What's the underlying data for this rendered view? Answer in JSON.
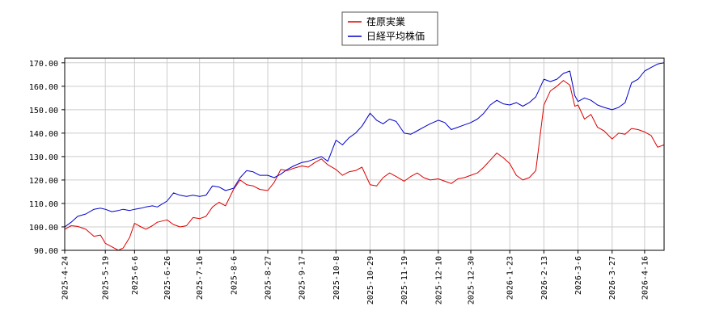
{
  "chart_data": {
    "type": "line",
    "title": "",
    "xlabel": "",
    "ylabel": "",
    "legend_position": "top-center",
    "grid": true,
    "ylim": [
      90,
      172
    ],
    "xlim": [
      "2025-04-24",
      "2026-04-28"
    ],
    "y_ticks": [
      {
        "value": 90,
        "label": "90.00"
      },
      {
        "value": 100,
        "label": "100.00"
      },
      {
        "value": 110,
        "label": "110.00"
      },
      {
        "value": 120,
        "label": "120.00"
      },
      {
        "value": 130,
        "label": "130.00"
      },
      {
        "value": 140,
        "label": "140.00"
      },
      {
        "value": 150,
        "label": "150.00"
      },
      {
        "value": 160,
        "label": "160.00"
      },
      {
        "value": 170,
        "label": "170.00"
      }
    ],
    "x_ticks": [
      "2025-4-24",
      "2025-5-19",
      "2025-6-6",
      "2025-6-26",
      "2025-7-16",
      "2025-8-6",
      "2025-8-27",
      "2025-9-17",
      "2025-10-8",
      "2025-10-29",
      "2025-11-19",
      "2025-12-10",
      "2025-12-30",
      "2026-1-23",
      "2026-2-13",
      "2026-3-6",
      "2026-3-27",
      "2026-4-16"
    ],
    "series": [
      {
        "name": "荏原実業",
        "color": "#dd0000",
        "points": [
          [
            "2025-04-24",
            99.0
          ],
          [
            "2025-04-28",
            100.5
          ],
          [
            "2025-05-02",
            100.2
          ],
          [
            "2025-05-07",
            99.0
          ],
          [
            "2025-05-12",
            96.0
          ],
          [
            "2025-05-16",
            96.5
          ],
          [
            "2025-05-19",
            93.0
          ],
          [
            "2025-05-23",
            91.5
          ],
          [
            "2025-05-27",
            90.0
          ],
          [
            "2025-05-30",
            91.0
          ],
          [
            "2025-06-03",
            95.5
          ],
          [
            "2025-06-06",
            101.5
          ],
          [
            "2025-06-10",
            100.0
          ],
          [
            "2025-06-13",
            99.0
          ],
          [
            "2025-06-17",
            100.5
          ],
          [
            "2025-06-20",
            102.0
          ],
          [
            "2025-06-26",
            103.0
          ],
          [
            "2025-06-30",
            101.0
          ],
          [
            "2025-07-04",
            100.0
          ],
          [
            "2025-07-08",
            100.5
          ],
          [
            "2025-07-12",
            104.0
          ],
          [
            "2025-07-16",
            103.5
          ],
          [
            "2025-07-20",
            104.5
          ],
          [
            "2025-07-24",
            108.5
          ],
          [
            "2025-07-28",
            110.5
          ],
          [
            "2025-08-01",
            109.0
          ],
          [
            "2025-08-06",
            116.0
          ],
          [
            "2025-08-10",
            120.0
          ],
          [
            "2025-08-14",
            118.0
          ],
          [
            "2025-08-18",
            117.5
          ],
          [
            "2025-08-22",
            116.0
          ],
          [
            "2025-08-27",
            115.5
          ],
          [
            "2025-08-31",
            119.0
          ],
          [
            "2025-09-04",
            124.5
          ],
          [
            "2025-09-08",
            124.0
          ],
          [
            "2025-09-12",
            125.0
          ],
          [
            "2025-09-17",
            126.0
          ],
          [
            "2025-09-21",
            125.5
          ],
          [
            "2025-09-25",
            127.5
          ],
          [
            "2025-09-29",
            129.0
          ],
          [
            "2025-10-03",
            126.5
          ],
          [
            "2025-10-08",
            124.5
          ],
          [
            "2025-10-12",
            122.0
          ],
          [
            "2025-10-16",
            123.5
          ],
          [
            "2025-10-20",
            124.0
          ],
          [
            "2025-10-24",
            125.5
          ],
          [
            "2025-10-29",
            118.0
          ],
          [
            "2025-11-02",
            117.5
          ],
          [
            "2025-11-06",
            121.0
          ],
          [
            "2025-11-10",
            123.0
          ],
          [
            "2025-11-14",
            121.5
          ],
          [
            "2025-11-19",
            119.5
          ],
          [
            "2025-11-23",
            121.5
          ],
          [
            "2025-11-27",
            123.0
          ],
          [
            "2025-12-01",
            121.0
          ],
          [
            "2025-12-05",
            120.0
          ],
          [
            "2025-12-10",
            120.5
          ],
          [
            "2025-12-14",
            119.5
          ],
          [
            "2025-12-18",
            118.5
          ],
          [
            "2025-12-22",
            120.5
          ],
          [
            "2025-12-26",
            121.0
          ],
          [
            "2025-12-30",
            122.0
          ],
          [
            "2026-01-03",
            123.0
          ],
          [
            "2026-01-07",
            125.5
          ],
          [
            "2026-01-11",
            128.5
          ],
          [
            "2026-01-15",
            131.5
          ],
          [
            "2026-01-19",
            129.5
          ],
          [
            "2026-01-23",
            127.0
          ],
          [
            "2026-01-27",
            122.0
          ],
          [
            "2026-01-31",
            120.0
          ],
          [
            "2026-02-04",
            121.0
          ],
          [
            "2026-02-08",
            124.0
          ],
          [
            "2026-02-13",
            152.0
          ],
          [
            "2026-02-17",
            158.0
          ],
          [
            "2026-02-21",
            160.0
          ],
          [
            "2026-02-25",
            162.5
          ],
          [
            "2026-03-01",
            160.5
          ],
          [
            "2026-03-04",
            151.5
          ],
          [
            "2026-03-06",
            152.0
          ],
          [
            "2026-03-10",
            146.0
          ],
          [
            "2026-03-14",
            148.0
          ],
          [
            "2026-03-18",
            142.5
          ],
          [
            "2026-03-22",
            141.0
          ],
          [
            "2026-03-27",
            137.5
          ],
          [
            "2026-03-31",
            140.0
          ],
          [
            "2026-04-04",
            139.5
          ],
          [
            "2026-04-08",
            142.0
          ],
          [
            "2026-04-12",
            141.5
          ],
          [
            "2026-04-16",
            140.5
          ],
          [
            "2026-04-20",
            139.0
          ],
          [
            "2026-04-24",
            134.0
          ],
          [
            "2026-04-28",
            135.0
          ]
        ]
      },
      {
        "name": "日経平均株価",
        "color": "#0000cc",
        "points": [
          [
            "2025-04-24",
            100.0
          ],
          [
            "2025-04-28",
            102.0
          ],
          [
            "2025-05-02",
            104.5
          ],
          [
            "2025-05-07",
            105.5
          ],
          [
            "2025-05-12",
            107.5
          ],
          [
            "2025-05-16",
            108.0
          ],
          [
            "2025-05-19",
            107.5
          ],
          [
            "2025-05-23",
            106.5
          ],
          [
            "2025-05-27",
            107.0
          ],
          [
            "2025-05-30",
            107.5
          ],
          [
            "2025-06-03",
            107.0
          ],
          [
            "2025-06-06",
            107.5
          ],
          [
            "2025-06-10",
            108.0
          ],
          [
            "2025-06-13",
            108.5
          ],
          [
            "2025-06-17",
            109.0
          ],
          [
            "2025-06-20",
            108.5
          ],
          [
            "2025-06-26",
            111.0
          ],
          [
            "2025-06-30",
            114.5
          ],
          [
            "2025-07-04",
            113.5
          ],
          [
            "2025-07-08",
            113.0
          ],
          [
            "2025-07-12",
            113.5
          ],
          [
            "2025-07-16",
            113.0
          ],
          [
            "2025-07-20",
            113.5
          ],
          [
            "2025-07-24",
            117.5
          ],
          [
            "2025-07-28",
            117.0
          ],
          [
            "2025-08-01",
            115.5
          ],
          [
            "2025-08-06",
            116.5
          ],
          [
            "2025-08-10",
            121.0
          ],
          [
            "2025-08-14",
            124.0
          ],
          [
            "2025-08-18",
            123.5
          ],
          [
            "2025-08-22",
            122.0
          ],
          [
            "2025-08-27",
            122.0
          ],
          [
            "2025-08-31",
            121.0
          ],
          [
            "2025-09-04",
            122.5
          ],
          [
            "2025-09-08",
            124.5
          ],
          [
            "2025-09-12",
            126.0
          ],
          [
            "2025-09-17",
            127.5
          ],
          [
            "2025-09-21",
            128.0
          ],
          [
            "2025-09-25",
            129.0
          ],
          [
            "2025-09-29",
            130.0
          ],
          [
            "2025-10-03",
            128.0
          ],
          [
            "2025-10-08",
            137.0
          ],
          [
            "2025-10-12",
            135.0
          ],
          [
            "2025-10-16",
            138.0
          ],
          [
            "2025-10-20",
            140.0
          ],
          [
            "2025-10-24",
            143.0
          ],
          [
            "2025-10-29",
            148.5
          ],
          [
            "2025-11-02",
            145.5
          ],
          [
            "2025-11-06",
            144.0
          ],
          [
            "2025-11-10",
            146.0
          ],
          [
            "2025-11-14",
            145.0
          ],
          [
            "2025-11-19",
            140.0
          ],
          [
            "2025-11-23",
            139.5
          ],
          [
            "2025-11-27",
            141.0
          ],
          [
            "2025-12-01",
            142.5
          ],
          [
            "2025-12-05",
            144.0
          ],
          [
            "2025-12-10",
            145.5
          ],
          [
            "2025-12-14",
            144.5
          ],
          [
            "2025-12-18",
            141.5
          ],
          [
            "2025-12-22",
            142.5
          ],
          [
            "2025-12-26",
            143.5
          ],
          [
            "2025-12-30",
            144.5
          ],
          [
            "2026-01-03",
            146.0
          ],
          [
            "2026-01-07",
            148.5
          ],
          [
            "2026-01-11",
            152.0
          ],
          [
            "2026-01-15",
            154.0
          ],
          [
            "2026-01-19",
            152.5
          ],
          [
            "2026-01-23",
            152.0
          ],
          [
            "2026-01-27",
            153.0
          ],
          [
            "2026-01-31",
            151.5
          ],
          [
            "2026-02-04",
            153.0
          ],
          [
            "2026-02-08",
            155.5
          ],
          [
            "2026-02-13",
            163.0
          ],
          [
            "2026-02-17",
            162.0
          ],
          [
            "2026-02-21",
            163.0
          ],
          [
            "2026-02-25",
            165.5
          ],
          [
            "2026-03-01",
            166.5
          ],
          [
            "2026-03-04",
            156.0
          ],
          [
            "2026-03-06",
            153.5
          ],
          [
            "2026-03-10",
            155.0
          ],
          [
            "2026-03-14",
            154.0
          ],
          [
            "2026-03-18",
            152.0
          ],
          [
            "2026-03-22",
            151.0
          ],
          [
            "2026-03-27",
            150.0
          ],
          [
            "2026-03-31",
            151.0
          ],
          [
            "2026-04-04",
            153.0
          ],
          [
            "2026-04-08",
            161.5
          ],
          [
            "2026-04-12",
            163.0
          ],
          [
            "2026-04-16",
            166.5
          ],
          [
            "2026-04-20",
            168.0
          ],
          [
            "2026-04-24",
            169.5
          ],
          [
            "2026-04-28",
            170.0
          ]
        ]
      }
    ]
  }
}
